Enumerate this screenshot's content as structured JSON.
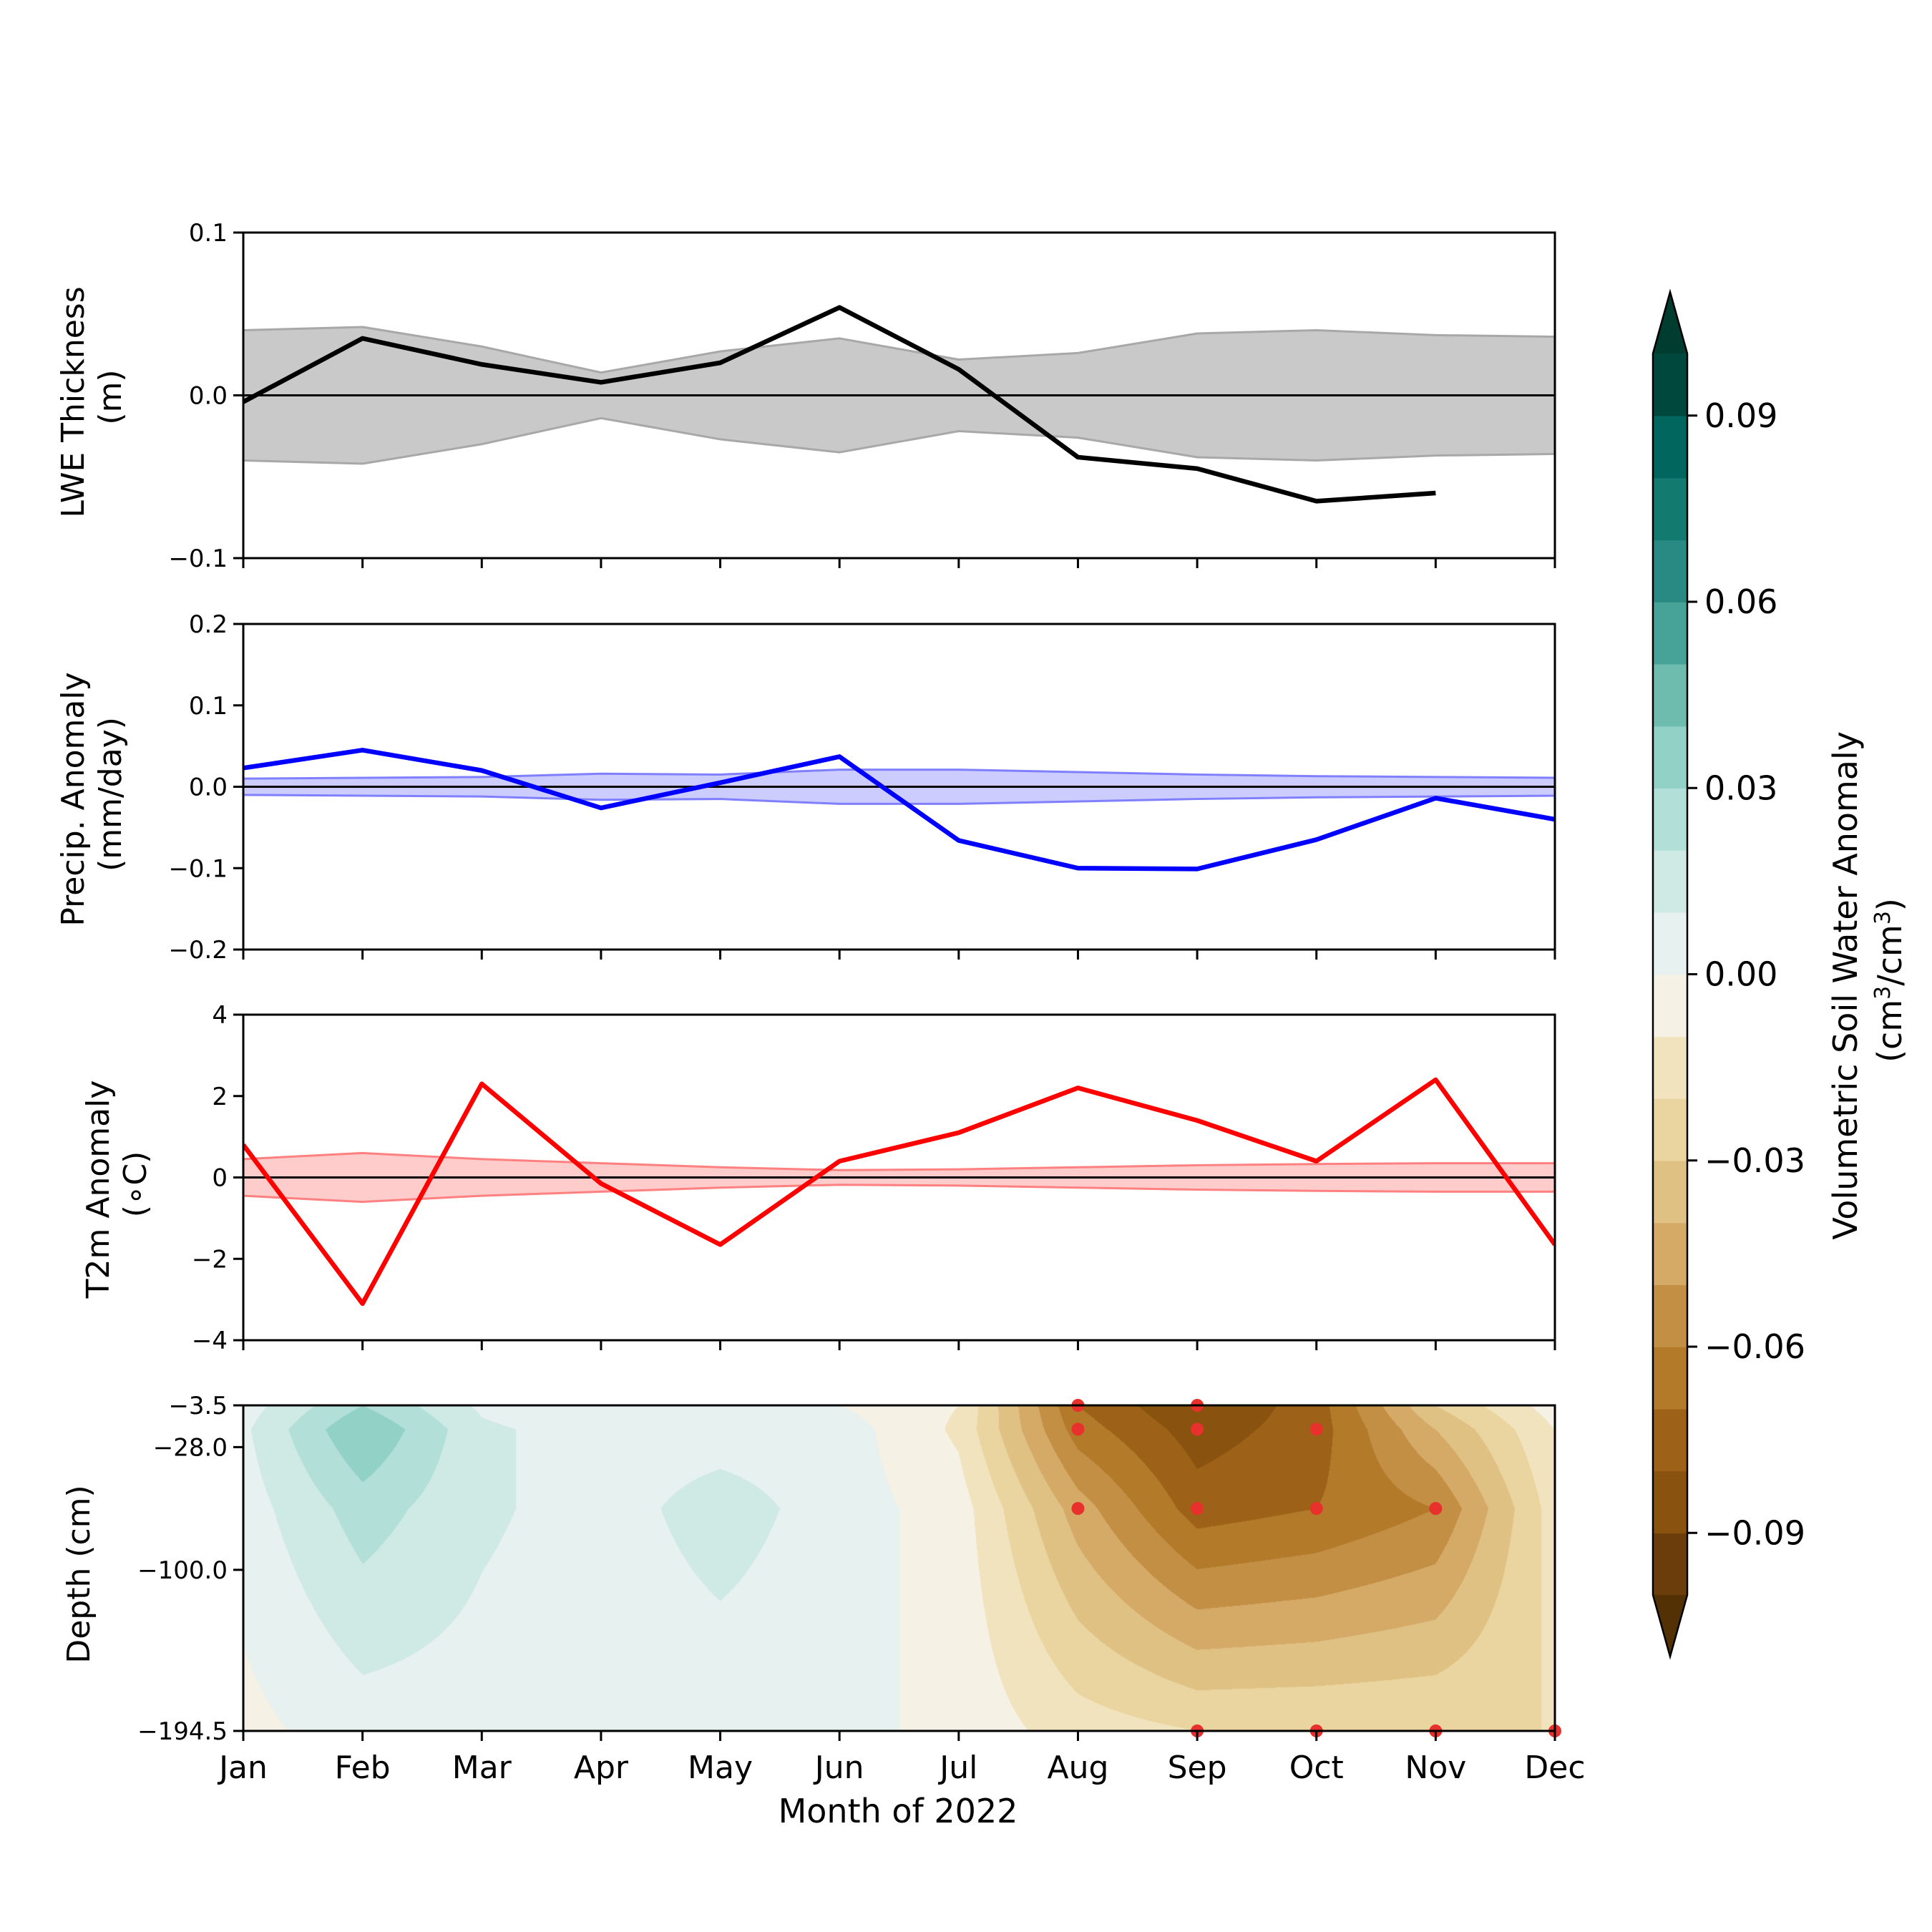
{
  "months": [
    "Jan",
    "Feb",
    "Mar",
    "Apr",
    "May",
    "Jun",
    "Jul",
    "Aug",
    "Sep",
    "Oct",
    "Nov",
    "Dec"
  ],
  "xlabel": "Month of 2022",
  "chart_data": [
    {
      "type": "line",
      "ylabel_line1": "LWE Thickness",
      "ylabel_line2": "(m)",
      "ylim": [
        -0.1,
        0.1
      ],
      "yticks": [
        -0.1,
        0.0,
        0.1
      ],
      "ytick_labels": [
        "−0.1",
        "0.0",
        "0.1"
      ],
      "line_color": "#000000",
      "band_color": "#c9c9c9",
      "band_edge_color": "#a8a8a8",
      "band_opacity": 1,
      "values": [
        -0.004,
        0.035,
        0.019,
        0.008,
        0.02,
        0.054,
        0.016,
        -0.038,
        -0.045,
        -0.065,
        -0.06,
        null
      ],
      "band_upper": [
        0.04,
        0.042,
        0.03,
        0.014,
        0.027,
        0.035,
        0.022,
        0.026,
        0.038,
        0.04,
        0.037,
        0.036
      ],
      "band_lower": [
        -0.04,
        -0.042,
        -0.03,
        -0.014,
        -0.027,
        -0.035,
        -0.022,
        -0.026,
        -0.038,
        -0.04,
        -0.037,
        -0.036
      ]
    },
    {
      "type": "line",
      "ylabel_line1": "Precip. Anomaly",
      "ylabel_line2": "(mm/day)",
      "ylim": [
        -0.2,
        0.2
      ],
      "yticks": [
        -0.2,
        -0.1,
        0.0,
        0.1,
        0.2
      ],
      "ytick_labels": [
        "−0.2",
        "−0.1",
        "0.0",
        "0.1",
        "0.2"
      ],
      "line_color": "#0000ff",
      "band_color": "#8080ff",
      "band_edge_color": "#8080ff",
      "band_opacity": 0.4,
      "values": [
        0.023,
        0.045,
        0.02,
        -0.026,
        0.005,
        0.037,
        -0.066,
        -0.1,
        -0.101,
        -0.065,
        -0.014,
        -0.04
      ],
      "band_upper": [
        0.01,
        0.011,
        0.012,
        0.016,
        0.015,
        0.021,
        0.021,
        0.018,
        0.015,
        0.013,
        0.012,
        0.011
      ],
      "band_lower": [
        -0.01,
        -0.011,
        -0.012,
        -0.016,
        -0.015,
        -0.021,
        -0.021,
        -0.018,
        -0.015,
        -0.013,
        -0.012,
        -0.011
      ]
    },
    {
      "type": "line",
      "ylabel_line1": "T2m Anomaly",
      "ylabel_line2": "(∘C)",
      "ylim": [
        -4,
        4
      ],
      "yticks": [
        -4,
        -2,
        0,
        2,
        4
      ],
      "ytick_labels": [
        "−4",
        "−2",
        "0",
        "2",
        "4"
      ],
      "line_color": "#ff0000",
      "band_color": "#ff8080",
      "band_edge_color": "#ff8080",
      "band_opacity": 0.4,
      "values": [
        0.8,
        -3.1,
        2.3,
        -0.15,
        -1.65,
        0.4,
        1.1,
        2.2,
        1.4,
        0.4,
        2.4,
        -1.65
      ],
      "band_upper": [
        0.45,
        0.6,
        0.45,
        0.35,
        0.25,
        0.18,
        0.2,
        0.25,
        0.3,
        0.33,
        0.35,
        0.35
      ],
      "band_lower": [
        -0.45,
        -0.6,
        -0.45,
        -0.35,
        -0.25,
        -0.18,
        -0.2,
        -0.25,
        -0.3,
        -0.33,
        -0.35,
        -0.35
      ]
    },
    {
      "type": "heatmap",
      "ylabel": "Depth (cm)",
      "depths": [
        -3.5,
        -28.0,
        -100.0,
        -194.5
      ],
      "ytick_labels": [
        "−3.5",
        "−28.0",
        "−100.0",
        "−194.5"
      ],
      "layer_depths": [
        -3.5,
        -17.5,
        -64.0,
        -194.5
      ],
      "values": [
        [
          0.005,
          0.03,
          0.008,
          0.0,
          0.005,
          0.0,
          -0.01,
          -0.07,
          -0.09,
          -0.075,
          -0.03,
          -0.005
        ],
        [
          0.008,
          0.04,
          0.012,
          0.005,
          0.005,
          0.005,
          -0.012,
          -0.065,
          -0.085,
          -0.075,
          -0.04,
          -0.01
        ],
        [
          0.005,
          0.025,
          0.012,
          0.005,
          0.015,
          0.005,
          -0.005,
          -0.045,
          -0.075,
          -0.07,
          -0.06,
          -0.015
        ],
        [
          -0.003,
          0.005,
          0.005,
          0.003,
          0.003,
          0.003,
          -0.003,
          -0.015,
          -0.02,
          -0.02,
          -0.02,
          -0.02
        ]
      ],
      "significant_points": [
        [
          "Aug",
          -3.5
        ],
        [
          "Sep",
          -3.5
        ],
        [
          "Aug",
          -17.5
        ],
        [
          "Sep",
          -17.5
        ],
        [
          "Oct",
          -17.5
        ],
        [
          "Aug",
          -64.0
        ],
        [
          "Sep",
          -64.0
        ],
        [
          "Oct",
          -64.0
        ],
        [
          "Nov",
          -64.0
        ],
        [
          "Sep",
          -194.5
        ],
        [
          "Oct",
          -194.5
        ],
        [
          "Nov",
          -194.5
        ],
        [
          "Dec",
          -194.5
        ]
      ],
      "marker_color": "#e8302c"
    }
  ],
  "colorbar": {
    "title_line1": "Volumetric Soil Water Anomaly",
    "title_line2_pre": "(cm",
    "title_line2_sup1": "3",
    "title_line2_mid": "/cm",
    "title_line2_sup2": "3",
    "title_line2_post": ")",
    "levels": [
      -0.1,
      -0.09,
      -0.08,
      -0.07,
      -0.06,
      -0.05,
      -0.04,
      -0.03,
      -0.02,
      -0.01,
      0.0,
      0.01,
      0.02,
      0.03,
      0.04,
      0.05,
      0.06,
      0.07,
      0.08,
      0.09,
      0.1
    ],
    "colors": [
      "#6b3d0b",
      "#8a520f",
      "#9d6217",
      "#b27a29",
      "#c38f45",
      "#d4aa66",
      "#e0c184",
      "#ead49f",
      "#f1e3bd",
      "#f5f1e4",
      "#e7f1ef",
      "#cfeae5",
      "#b2e0d8",
      "#92d1c5",
      "#6dbcae",
      "#47a298",
      "#288a82",
      "#137a70",
      "#01665e",
      "#00483d"
    ],
    "under_color": "#543005",
    "over_color": "#003c30",
    "ticks": [
      -0.09,
      -0.06,
      -0.03,
      0.0,
      0.03,
      0.06,
      0.09
    ],
    "tick_labels": [
      "−0.09",
      "−0.06",
      "−0.03",
      "0.00",
      "0.03",
      "0.06",
      "0.09"
    ]
  }
}
